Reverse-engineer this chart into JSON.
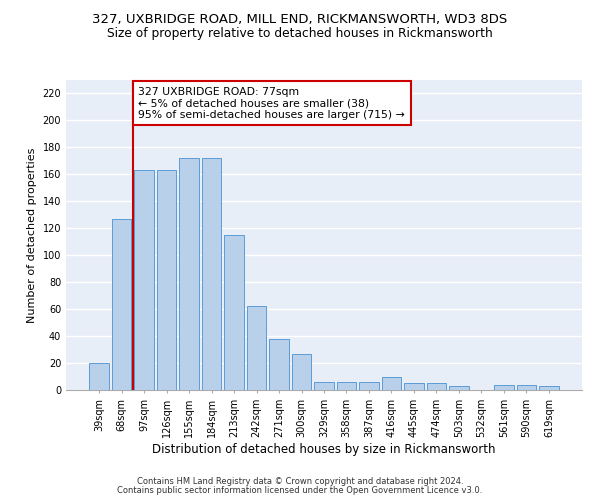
{
  "title": "327, UXBRIDGE ROAD, MILL END, RICKMANSWORTH, WD3 8DS",
  "subtitle": "Size of property relative to detached houses in Rickmansworth",
  "xlabel": "Distribution of detached houses by size in Rickmansworth",
  "ylabel": "Number of detached properties",
  "categories": [
    "39sqm",
    "68sqm",
    "97sqm",
    "126sqm",
    "155sqm",
    "184sqm",
    "213sqm",
    "242sqm",
    "271sqm",
    "300sqm",
    "329sqm",
    "358sqm",
    "387sqm",
    "416sqm",
    "445sqm",
    "474sqm",
    "503sqm",
    "532sqm",
    "561sqm",
    "590sqm",
    "619sqm"
  ],
  "values": [
    20,
    127,
    163,
    163,
    172,
    172,
    115,
    62,
    38,
    27,
    6,
    6,
    6,
    10,
    5,
    5,
    3,
    0,
    4,
    4,
    3
  ],
  "bar_color": "#b8d0ea",
  "bar_edge_color": "#5b9bd5",
  "vline_x": 1.5,
  "vline_color": "#cc0000",
  "annotation_text": "327 UXBRIDGE ROAD: 77sqm\n← 5% of detached houses are smaller (38)\n95% of semi-detached houses are larger (715) →",
  "annotation_box_facecolor": "#ffffff",
  "annotation_box_edgecolor": "#cc0000",
  "ylim_max": 230,
  "ytick_step": 20,
  "footer1": "Contains HM Land Registry data © Crown copyright and database right 2024.",
  "footer2": "Contains public sector information licensed under the Open Government Licence v3.0.",
  "plot_bg": "#e8eef7",
  "title_fontsize": 9.5,
  "subtitle_fontsize": 8.8,
  "ylabel_fontsize": 8,
  "xlabel_fontsize": 8.5,
  "tick_fontsize": 7,
  "footer_fontsize": 6,
  "annot_fontsize": 7.8
}
